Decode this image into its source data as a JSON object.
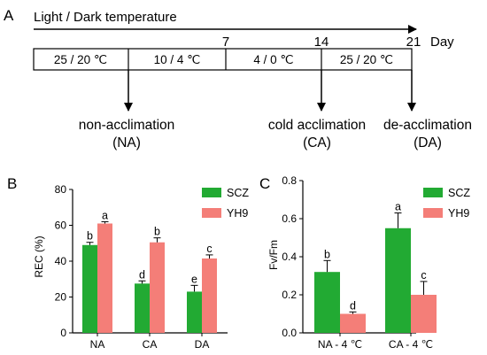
{
  "panel_a": {
    "label": "A",
    "header": "Light / Dark  temperature",
    "day_unit": "Day",
    "day_ticks": [
      "7",
      "14",
      "21"
    ],
    "segments": [
      "25 / 20 ℃",
      "10 / 4 ℃",
      "4 / 0 ℃",
      "25 / 20 ℃"
    ],
    "stages": [
      {
        "name": "non-acclimation",
        "abbr": "(NA)"
      },
      {
        "name": "cold acclimation",
        "abbr": "(CA)"
      },
      {
        "name": "de-acclimation",
        "abbr": "(DA)"
      }
    ]
  },
  "colors": {
    "scz": "#22aa33",
    "yh9": "#f47e78"
  },
  "chart_data": [
    {
      "panel": "B",
      "type": "bar",
      "ylabel": "REC (%)",
      "categories": [
        "NA",
        "CA",
        "DA"
      ],
      "ylim": [
        0,
        80
      ],
      "yticks": [
        "0",
        "20",
        "40",
        "60",
        "80"
      ],
      "series": [
        {
          "name": "SCZ",
          "values": [
            49,
            27.5,
            23
          ],
          "errors": [
            1.5,
            1.5,
            3.5
          ],
          "letters": [
            "b",
            "d",
            "e"
          ]
        },
        {
          "name": "YH9",
          "values": [
            61,
            50.5,
            41.5
          ],
          "errors": [
            1,
            2.5,
            2
          ],
          "letters": [
            "a",
            "b",
            "c"
          ]
        }
      ]
    },
    {
      "panel": "C",
      "type": "bar",
      "ylabel": "Fv/Fm",
      "categories": [
        "NA - 4 ℃",
        "CA - 4 ℃"
      ],
      "ylim": [
        0,
        0.8
      ],
      "yticks": [
        "0.0",
        "0.2",
        "0.4",
        "0.6",
        "0.8"
      ],
      "series": [
        {
          "name": "SCZ",
          "values": [
            0.32,
            0.55
          ],
          "errors": [
            0.06,
            0.08
          ],
          "letters": [
            "b",
            "a"
          ]
        },
        {
          "name": "YH9",
          "values": [
            0.1,
            0.2
          ],
          "errors": [
            0.01,
            0.07
          ],
          "letters": [
            "d",
            "c"
          ]
        }
      ]
    }
  ]
}
